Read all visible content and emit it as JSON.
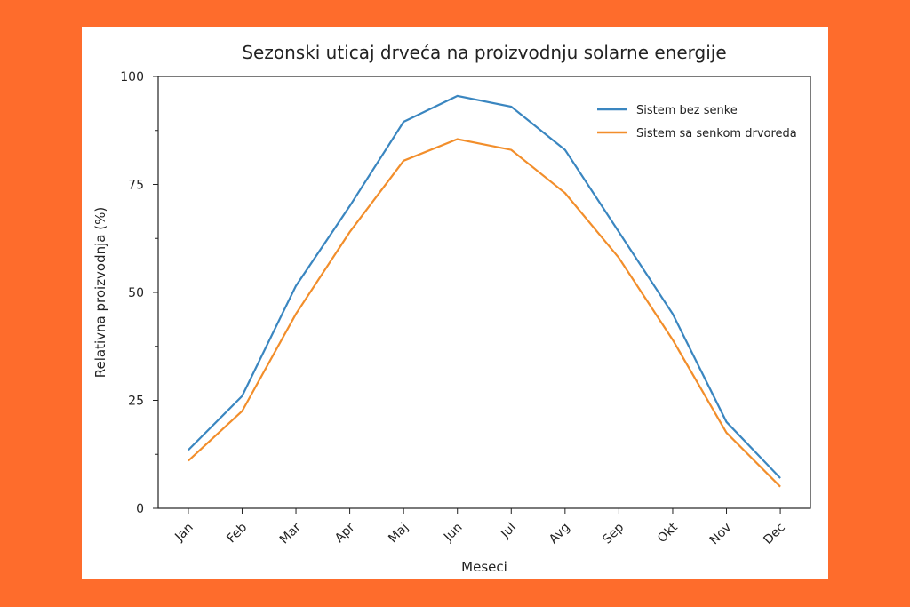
{
  "chart_data": {
    "type": "line",
    "title": "Sezonski uticaj drveća na proizvodnju solarne energije",
    "x_label": "Meseci",
    "y_label": "Relativna proizvodnja (%)",
    "categories": [
      "Jan",
      "Feb",
      "Mar",
      "Apr",
      "Maj",
      "Jun",
      "Jul",
      "Avg",
      "Sep",
      "Okt",
      "Nov",
      "Dec"
    ],
    "series": [
      {
        "name": "Sistem bez senke",
        "color": "#3a86c0",
        "values": [
          13.5,
          26,
          51.5,
          70,
          89.5,
          95.5,
          93,
          83,
          64,
          45,
          20,
          7
        ]
      },
      {
        "name": "Sistem sa senkom drvoreda",
        "color": "#f28e2b",
        "values": [
          11,
          22.5,
          45,
          64,
          80.5,
          85.5,
          83,
          73,
          58,
          39,
          17.5,
          5
        ]
      }
    ],
    "ylim": [
      0,
      100
    ],
    "yticks": [
      0,
      25,
      50,
      75,
      100
    ],
    "yminor_ticks": [
      12.5,
      37.5,
      62.5,
      87.5
    ],
    "grid": false,
    "legend": "upper right"
  }
}
